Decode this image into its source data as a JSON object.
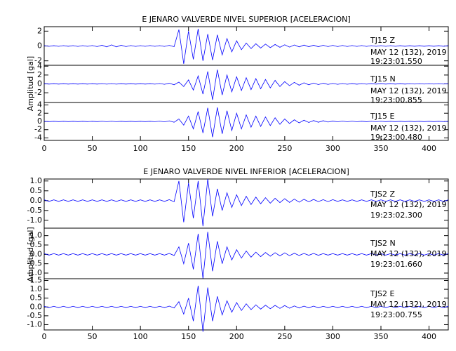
{
  "chart_data": [
    {
      "type": "line",
      "title": "E JENARO VALVERDE NIVEL SUPERIOR [ACELERACION]",
      "y_label": "Amplitud [gal]",
      "xlim": [
        0,
        420
      ],
      "xticks": [
        0,
        50,
        100,
        150,
        200,
        250,
        300,
        350,
        400
      ],
      "x": [
        0,
        5,
        10,
        15,
        20,
        25,
        30,
        35,
        40,
        45,
        50,
        55,
        60,
        65,
        70,
        75,
        80,
        85,
        90,
        95,
        100,
        105,
        110,
        115,
        120,
        125,
        130,
        135,
        140,
        145,
        150,
        155,
        160,
        165,
        170,
        175,
        180,
        185,
        190,
        195,
        200,
        205,
        210,
        215,
        220,
        225,
        230,
        235,
        240,
        245,
        250,
        255,
        260,
        265,
        270,
        275,
        280,
        285,
        290,
        295,
        300,
        305,
        310,
        315,
        320,
        325,
        330,
        335,
        340,
        345,
        350,
        355,
        360,
        365,
        370,
        375,
        380,
        385,
        390,
        395,
        400,
        405,
        410,
        415,
        420
      ],
      "panels": [
        {
          "color": "#0000ff",
          "ylim": [
            -2.6,
            2.6
          ],
          "yticks": [
            -2,
            0,
            2
          ],
          "labels": [
            "TJ15   Z",
            "MAY 12 (132), 2019",
            "19:23:01.550"
          ],
          "values": [
            0.05,
            -0.05,
            0.04,
            -0.05,
            0.05,
            -0.04,
            0.05,
            -0.06,
            0.05,
            -0.05,
            0.06,
            -0.08,
            0.1,
            -0.12,
            0.15,
            -0.12,
            0.1,
            -0.08,
            0.06,
            -0.06,
            0.05,
            -0.05,
            0.06,
            -0.05,
            0.05,
            -0.06,
            0.08,
            -0.1,
            2.2,
            -2.4,
            2.0,
            -1.8,
            2.3,
            -2.0,
            1.6,
            -1.9,
            1.5,
            -1.2,
            1.0,
            -0.8,
            0.7,
            -0.5,
            0.4,
            -0.35,
            0.3,
            -0.28,
            0.25,
            -0.22,
            0.2,
            -0.18,
            0.16,
            -0.15,
            0.14,
            -0.12,
            0.12,
            -0.1,
            0.1,
            -0.1,
            0.09,
            -0.08,
            0.08,
            -0.08,
            0.07,
            -0.07,
            0.06,
            -0.06,
            0.06,
            -0.06,
            0.05,
            -0.05,
            0.05,
            -0.05,
            0.05,
            -0.05,
            0.04,
            -0.04,
            0.04,
            -0.04,
            0.04,
            -0.04,
            0.04,
            -0.04,
            0.04,
            -0.04,
            0.04
          ]
        },
        {
          "color": "#0000ff",
          "ylim": [
            -4.2,
            4.2
          ],
          "yticks": [
            -2,
            0,
            2,
            4
          ],
          "labels": [
            "TJ15   N",
            "MAY 12 (132), 2019",
            "19:23:00.855"
          ],
          "values": [
            0.05,
            -0.05,
            0.05,
            -0.05,
            0.05,
            -0.05,
            0.05,
            -0.05,
            0.05,
            -0.05,
            0.05,
            -0.05,
            0.06,
            -0.06,
            0.06,
            -0.06,
            0.05,
            -0.05,
            0.05,
            -0.05,
            0.05,
            -0.05,
            0.05,
            -0.06,
            0.08,
            -0.1,
            0.15,
            -0.2,
            0.4,
            -0.6,
            0.9,
            -1.4,
            1.8,
            -2.3,
            2.8,
            -3.6,
            3.2,
            -2.5,
            2.0,
            -1.8,
            1.6,
            -1.5,
            1.4,
            -1.3,
            1.2,
            -1.1,
            1.0,
            -0.9,
            0.8,
            -0.6,
            0.5,
            -0.4,
            0.35,
            -0.3,
            0.25,
            -0.2,
            0.2,
            -0.15,
            0.15,
            -0.12,
            0.1,
            -0.1,
            0.08,
            -0.08,
            0.07,
            -0.07,
            0.06,
            -0.06,
            0.05,
            -0.05,
            0.05,
            -0.05,
            0.05,
            -0.05,
            0.05,
            -0.05,
            0.04,
            -0.04,
            0.04,
            -0.04,
            0.04,
            -0.04,
            0.04,
            -0.04,
            0.04
          ]
        },
        {
          "color": "#0000ff",
          "ylim": [
            -4.6,
            4.6
          ],
          "yticks": [
            -4,
            -2,
            0,
            2,
            4
          ],
          "labels": [
            "TJ15   E",
            "MAY 12 (132), 2019",
            "19:23:00.480"
          ],
          "values": [
            0.05,
            -0.05,
            0.05,
            -0.05,
            0.05,
            -0.05,
            0.05,
            -0.05,
            0.05,
            -0.05,
            0.05,
            -0.05,
            0.06,
            -0.06,
            0.06,
            -0.06,
            0.05,
            -0.05,
            0.05,
            -0.05,
            0.05,
            -0.05,
            0.05,
            -0.06,
            0.08,
            -0.1,
            0.15,
            -0.2,
            0.6,
            -0.9,
            1.3,
            -1.8,
            2.4,
            -2.8,
            3.3,
            -3.8,
            3.4,
            -3.0,
            2.6,
            -2.2,
            2.0,
            -1.8,
            1.6,
            -1.4,
            1.3,
            -1.2,
            1.1,
            -1.0,
            0.9,
            -0.7,
            0.6,
            -0.5,
            0.4,
            -0.35,
            0.3,
            -0.25,
            0.22,
            -0.2,
            0.18,
            -0.15,
            0.12,
            -0.1,
            0.1,
            -0.09,
            0.08,
            -0.08,
            0.07,
            -0.07,
            0.06,
            -0.06,
            0.06,
            -0.05,
            0.05,
            -0.05,
            0.05,
            -0.05,
            0.05,
            -0.05,
            0.05,
            -0.05,
            0.05,
            -0.05,
            0.05,
            -0.05,
            0.05
          ]
        }
      ]
    },
    {
      "type": "line",
      "title": "E JENARO VALVERDE NIVEL INFERIOR [ACELERACION]",
      "y_label": "Amplitud [gal]",
      "xlim": [
        0,
        420
      ],
      "xticks": [
        0,
        50,
        100,
        150,
        200,
        250,
        300,
        350,
        400
      ],
      "x": [
        0,
        5,
        10,
        15,
        20,
        25,
        30,
        35,
        40,
        45,
        50,
        55,
        60,
        65,
        70,
        75,
        80,
        85,
        90,
        95,
        100,
        105,
        110,
        115,
        120,
        125,
        130,
        135,
        140,
        145,
        150,
        155,
        160,
        165,
        170,
        175,
        180,
        185,
        190,
        195,
        200,
        205,
        210,
        215,
        220,
        225,
        230,
        235,
        240,
        245,
        250,
        255,
        260,
        265,
        270,
        275,
        280,
        285,
        290,
        295,
        300,
        305,
        310,
        315,
        320,
        325,
        330,
        335,
        340,
        345,
        350,
        355,
        360,
        365,
        370,
        375,
        380,
        385,
        390,
        395,
        400,
        405,
        410,
        415,
        420
      ],
      "panels": [
        {
          "color": "#0000ff",
          "ylim": [
            -1.4,
            1.1
          ],
          "yticks": [
            {
              "value": -1.0,
              "label": "-1.0"
            },
            -0.5,
            {
              "value": 0.0,
              "label": "0.0"
            },
            0.5,
            {
              "value": 1.0,
              "label": "1.0"
            }
          ],
          "labels": [
            "TJS2   Z",
            "MAY 12 (132), 2019",
            "19:23:02.300"
          ],
          "values": [
            0.04,
            -0.04,
            0.04,
            -0.04,
            0.04,
            -0.04,
            0.04,
            -0.04,
            0.04,
            -0.04,
            0.04,
            -0.04,
            0.04,
            -0.04,
            0.04,
            -0.04,
            0.04,
            -0.04,
            0.04,
            -0.04,
            0.04,
            -0.04,
            0.04,
            -0.04,
            0.04,
            -0.04,
            0.05,
            -0.06,
            1.0,
            -1.1,
            0.9,
            -0.9,
            1.0,
            -1.3,
            1.1,
            -0.8,
            0.6,
            -0.5,
            0.4,
            -0.35,
            0.3,
            -0.25,
            0.22,
            -0.2,
            0.18,
            -0.16,
            0.15,
            -0.13,
            0.12,
            -0.1,
            0.1,
            -0.09,
            0.08,
            -0.08,
            0.07,
            -0.06,
            0.06,
            -0.05,
            0.05,
            -0.05,
            0.05,
            -0.04,
            0.04,
            -0.04,
            0.04,
            -0.04,
            0.04,
            -0.04,
            0.04,
            -0.04,
            0.04,
            -0.04,
            0.04,
            -0.04,
            0.04,
            -0.04,
            0.04,
            -0.04,
            0.04,
            -0.04,
            0.04,
            -0.04,
            0.04,
            -0.04,
            0.04
          ]
        },
        {
          "color": "#0000ff",
          "ylim": [
            -1.3,
            1.4
          ],
          "yticks": [
            {
              "value": -1.0,
              "label": "-1.0"
            },
            -0.5,
            {
              "value": 0.0,
              "label": "0.0"
            },
            0.5,
            {
              "value": 1.0,
              "label": "1.0"
            }
          ],
          "labels": [
            "TJS2   N",
            "MAY 12 (132), 2019",
            "19:23:01.660"
          ],
          "values": [
            0.04,
            -0.04,
            0.04,
            -0.04,
            0.04,
            -0.04,
            0.04,
            -0.04,
            0.04,
            -0.04,
            0.04,
            -0.04,
            0.04,
            -0.04,
            0.04,
            -0.04,
            0.04,
            -0.04,
            0.04,
            -0.04,
            0.04,
            -0.04,
            0.04,
            -0.04,
            0.04,
            -0.04,
            0.05,
            -0.06,
            0.4,
            -0.5,
            0.6,
            -0.8,
            1.1,
            -1.3,
            1.2,
            -0.9,
            0.7,
            -0.5,
            0.4,
            -0.3,
            0.25,
            -0.2,
            0.18,
            -0.15,
            0.12,
            -0.12,
            0.1,
            -0.1,
            0.09,
            -0.08,
            0.08,
            -0.07,
            0.06,
            -0.06,
            0.05,
            -0.05,
            0.05,
            -0.05,
            0.04,
            -0.04,
            0.04,
            -0.04,
            0.04,
            -0.04,
            0.04,
            -0.04,
            0.04,
            -0.04,
            0.04,
            -0.04,
            0.04,
            -0.04,
            0.04,
            -0.04,
            0.04,
            -0.04,
            0.04,
            -0.04,
            0.04,
            -0.04,
            0.04,
            -0.04,
            0.04,
            -0.04,
            0.04
          ]
        },
        {
          "color": "#0000ff",
          "ylim": [
            -1.3,
            1.6
          ],
          "yticks": [
            {
              "value": -1.0,
              "label": "-1.0"
            },
            -0.5,
            {
              "value": 0.0,
              "label": "0.0"
            },
            0.5,
            {
              "value": 1.0,
              "label": "1.0"
            },
            1.5
          ],
          "labels": [
            "TJS2   E",
            "MAY 12 (132), 2019",
            "19:23:00.755"
          ],
          "values": [
            0.04,
            -0.04,
            0.04,
            -0.04,
            0.04,
            -0.04,
            0.04,
            -0.04,
            0.04,
            -0.04,
            0.04,
            -0.04,
            0.04,
            -0.04,
            0.04,
            -0.04,
            0.04,
            -0.04,
            0.04,
            -0.04,
            0.04,
            -0.04,
            0.04,
            -0.04,
            0.04,
            -0.04,
            0.05,
            -0.06,
            0.3,
            -0.4,
            0.5,
            -0.8,
            1.2,
            -1.4,
            1.1,
            -0.8,
            0.6,
            -0.45,
            0.35,
            -0.3,
            0.25,
            -0.2,
            0.18,
            -0.15,
            0.12,
            -0.12,
            0.1,
            -0.1,
            0.09,
            -0.08,
            0.08,
            -0.07,
            0.06,
            -0.06,
            0.05,
            -0.05,
            0.05,
            -0.05,
            0.04,
            -0.04,
            0.04,
            -0.04,
            0.04,
            -0.04,
            0.04,
            -0.04,
            0.04,
            -0.04,
            0.04,
            -0.04,
            0.04,
            -0.04,
            0.04,
            -0.04,
            0.04,
            -0.04,
            0.04,
            -0.04,
            0.04,
            -0.04,
            0.04,
            -0.04,
            0.04,
            -0.04,
            0.04
          ]
        }
      ]
    }
  ]
}
